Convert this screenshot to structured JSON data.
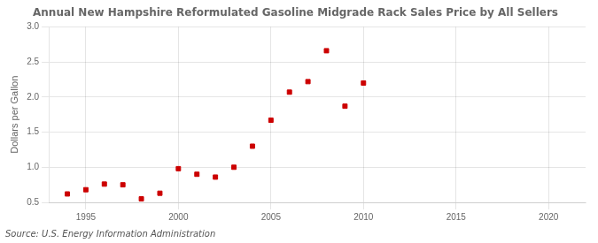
{
  "chart_data": {
    "type": "scatter",
    "title": "Annual New Hampshire Reformulated Gasoline Midgrade Rack Sales Price by All Sellers",
    "y_label": "Dollars per Gallon",
    "source": "Source: U.S. Energy Information Administration",
    "color": "#cc0000",
    "marker": "square",
    "x": [
      1994,
      1995,
      1996,
      1997,
      1998,
      1999,
      2000,
      2001,
      2002,
      2003,
      2004,
      2005,
      2006,
      2007,
      2008,
      2009,
      2010
    ],
    "values": [
      0.62,
      0.68,
      0.76,
      0.75,
      0.55,
      0.63,
      0.98,
      0.9,
      0.86,
      1.0,
      1.3,
      1.67,
      2.07,
      2.22,
      2.66,
      1.87,
      2.2
    ],
    "xlim": [
      1993,
      2022
    ],
    "ylim": [
      0.5,
      3.0
    ],
    "xticks": [
      1995,
      2000,
      2005,
      2010,
      2015,
      2020
    ],
    "yticks": [
      0.5,
      {
        "value": 1.0,
        "label": "1.0"
      },
      1.5,
      {
        "value": 2.0,
        "label": "2.0"
      },
      2.5,
      {
        "value": 3.0,
        "label": "3.0"
      }
    ],
    "grid": true
  }
}
